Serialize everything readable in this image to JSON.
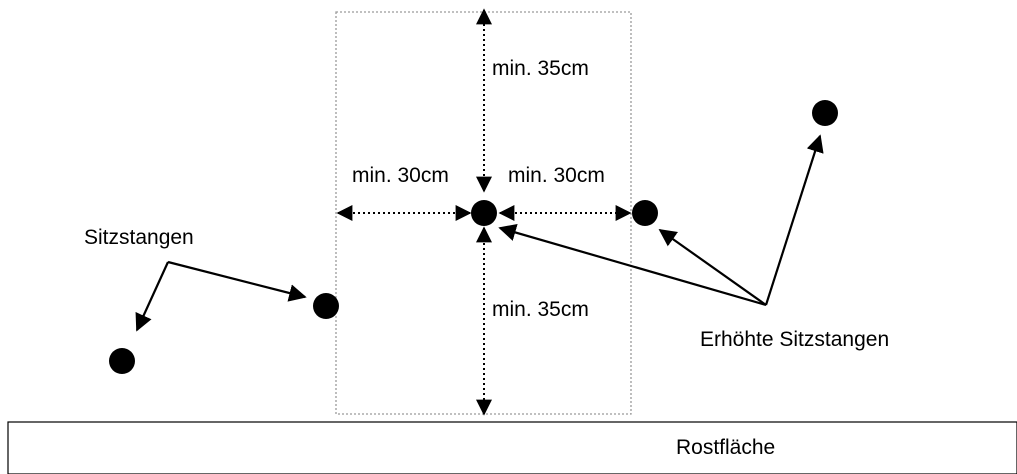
{
  "labels": {
    "perches": "Sitzstangen",
    "raised_perches": "Erhöhte Sitzstangen",
    "floor": "Rostfläche",
    "dist_top": "min. 35cm",
    "dist_bottom": "min. 35cm",
    "dist_left": "min. 30cm",
    "dist_right": "min. 30cm"
  },
  "colors": {
    "ink": "#000000",
    "zone_border": "#9a9a9a",
    "background": "#ffffff"
  }
}
